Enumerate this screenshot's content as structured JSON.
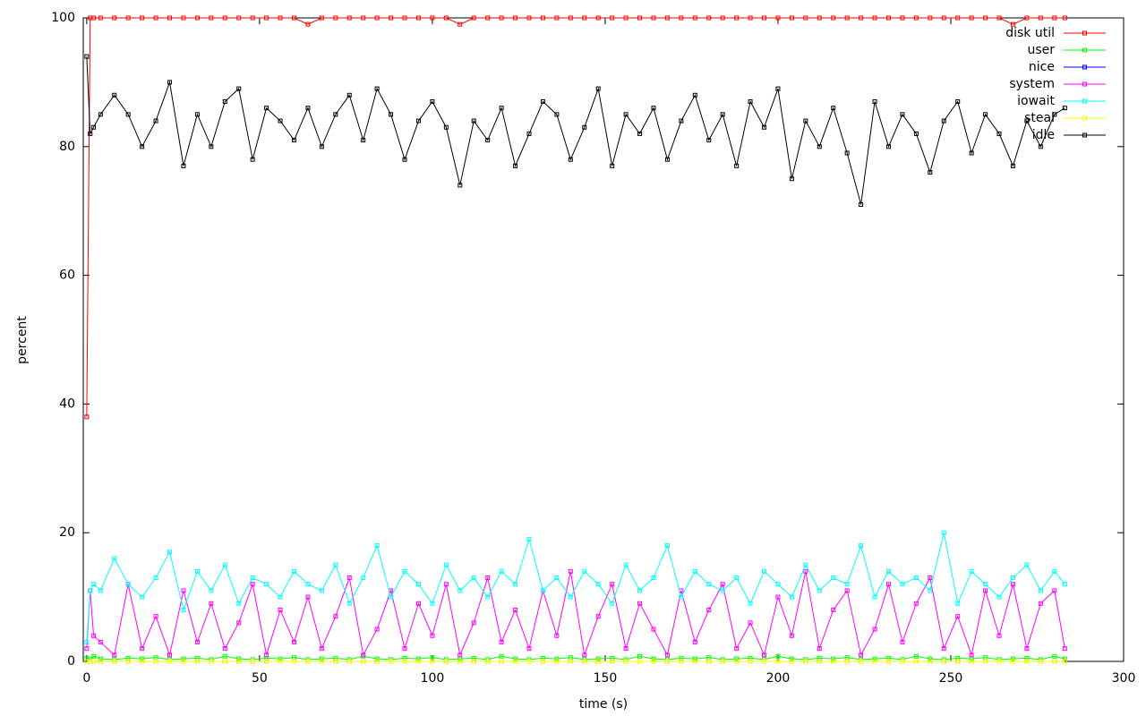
{
  "chart_data": {
    "type": "line",
    "xlabel": "time (s)",
    "ylabel": "percent",
    "xlim": [
      -1,
      300
    ],
    "ylim": [
      0,
      100
    ],
    "xticks": [
      0,
      50,
      100,
      150,
      200,
      250,
      300
    ],
    "yticks": [
      0,
      20,
      40,
      60,
      80,
      100
    ],
    "legend": "top-right",
    "x": [
      0,
      1,
      2,
      4,
      8,
      12,
      16,
      20,
      24,
      28,
      32,
      36,
      40,
      44,
      48,
      52,
      56,
      60,
      64,
      68,
      72,
      76,
      80,
      84,
      88,
      92,
      96,
      100,
      104,
      108,
      112,
      116,
      120,
      124,
      128,
      132,
      136,
      140,
      144,
      148,
      152,
      156,
      160,
      164,
      168,
      172,
      176,
      180,
      184,
      188,
      192,
      196,
      200,
      204,
      208,
      212,
      216,
      220,
      224,
      228,
      232,
      236,
      240,
      244,
      248,
      252,
      256,
      260,
      264,
      268,
      272,
      276,
      280,
      283
    ],
    "series": [
      {
        "name": "disk util",
        "color": "#ff0000",
        "values": [
          38,
          100,
          100,
          100,
          100,
          100,
          100,
          100,
          100,
          100,
          100,
          100,
          100,
          100,
          100,
          100,
          100,
          100,
          99,
          100,
          100,
          100,
          100,
          100,
          100,
          100,
          100,
          100,
          100,
          99,
          100,
          100,
          100,
          100,
          100,
          100,
          100,
          100,
          100,
          100,
          100,
          100,
          100,
          100,
          100,
          100,
          100,
          100,
          100,
          100,
          100,
          100,
          100,
          100,
          100,
          100,
          100,
          100,
          100,
          100,
          100,
          100,
          100,
          100,
          100,
          100,
          100,
          100,
          100,
          99,
          100,
          100,
          100,
          100
        ]
      },
      {
        "name": "user",
        "color": "#00ff00",
        "values": [
          0.5,
          0.3,
          0.8,
          0.4,
          0.3,
          0.5,
          0.4,
          0.6,
          0.3,
          0.4,
          0.5,
          0.3,
          0.8,
          0.4,
          0.3,
          0.5,
          0.4,
          0.6,
          0.3,
          0.4,
          0.5,
          0.3,
          0.8,
          0.4,
          0.3,
          0.5,
          0.4,
          0.6,
          0.3,
          0.4,
          0.5,
          0.3,
          0.8,
          0.4,
          0.3,
          0.5,
          0.4,
          0.6,
          0.3,
          0.4,
          0.5,
          0.3,
          0.8,
          0.4,
          0.3,
          0.5,
          0.4,
          0.6,
          0.3,
          0.4,
          0.5,
          0.3,
          0.8,
          0.4,
          0.3,
          0.5,
          0.4,
          0.6,
          0.3,
          0.4,
          0.5,
          0.3,
          0.8,
          0.4,
          0.3,
          0.5,
          0.4,
          0.6,
          0.3,
          0.4,
          0.5,
          0.3,
          0.8,
          0.4
        ]
      },
      {
        "name": "nice",
        "color": "#0000ff",
        "values": [
          0,
          0,
          0,
          0,
          0,
          0,
          0,
          0,
          0,
          0,
          0,
          0,
          0,
          0,
          0,
          0,
          0,
          0,
          0,
          0,
          0,
          0,
          0,
          0,
          0,
          0,
          0,
          0,
          0,
          0,
          0,
          0,
          0,
          0,
          0,
          0,
          0,
          0,
          0,
          0,
          0,
          0,
          0,
          0,
          0,
          0,
          0,
          0,
          0,
          0,
          0,
          0,
          0,
          0,
          0,
          0,
          0,
          0,
          0,
          0,
          0,
          0,
          0,
          0,
          0,
          0,
          0,
          0,
          0,
          0,
          0,
          0,
          0,
          0
        ]
      },
      {
        "name": "system",
        "color": "#ff00ff",
        "values": [
          2,
          11,
          4,
          3,
          1,
          12,
          2,
          7,
          1,
          11,
          3,
          9,
          2,
          6,
          12,
          1,
          8,
          3,
          10,
          2,
          7,
          13,
          1,
          5,
          11,
          2,
          9,
          4,
          12,
          1,
          6,
          13,
          3,
          8,
          2,
          11,
          4,
          14,
          1,
          7,
          12,
          2,
          9,
          5,
          1,
          11,
          3,
          8,
          12,
          2,
          6,
          1,
          10,
          4,
          14,
          2,
          8,
          11,
          1,
          5,
          12,
          3,
          9,
          13,
          2,
          7,
          1,
          11,
          4,
          12,
          2,
          9,
          11,
          2
        ]
      },
      {
        "name": "iowait",
        "color": "#00ffff",
        "values": [
          3,
          11,
          12,
          11,
          16,
          12,
          10,
          13,
          17,
          8,
          14,
          11,
          15,
          9,
          13,
          12,
          10,
          14,
          12,
          11,
          15,
          9,
          13,
          18,
          10,
          14,
          12,
          9,
          15,
          11,
          13,
          10,
          14,
          12,
          19,
          11,
          13,
          10,
          14,
          12,
          9,
          15,
          11,
          13,
          18,
          10,
          14,
          12,
          11,
          13,
          9,
          14,
          12,
          10,
          15,
          11,
          13,
          12,
          18,
          10,
          14,
          12,
          13,
          11,
          20,
          9,
          14,
          12,
          10,
          13,
          15,
          11,
          14,
          12
        ]
      },
      {
        "name": "steal",
        "color": "#ffff00",
        "values": [
          0,
          0,
          0,
          0,
          0,
          0,
          0,
          0,
          0,
          0,
          0,
          0,
          0,
          0,
          0,
          0,
          0,
          0,
          0,
          0,
          0,
          0,
          0,
          0,
          0,
          0,
          0,
          0,
          0,
          0,
          0,
          0,
          0,
          0,
          0,
          0,
          0,
          0,
          0,
          0,
          0,
          0,
          0,
          0,
          0,
          0,
          0,
          0,
          0,
          0,
          0,
          0,
          0,
          0,
          0,
          0,
          0,
          0,
          0,
          0,
          0,
          0,
          0,
          0,
          0,
          0,
          0,
          0,
          0,
          0,
          0,
          0,
          0,
          0
        ]
      },
      {
        "name": "idle",
        "color": "#000000",
        "values": [
          94,
          82,
          83,
          85,
          88,
          85,
          80,
          84,
          90,
          77,
          85,
          80,
          87,
          89,
          78,
          86,
          84,
          81,
          86,
          80,
          85,
          88,
          81,
          89,
          85,
          78,
          84,
          87,
          83,
          74,
          84,
          81,
          86,
          77,
          82,
          87,
          85,
          78,
          83,
          89,
          77,
          85,
          82,
          86,
          78,
          84,
          88,
          81,
          85,
          77,
          87,
          83,
          89,
          75,
          84,
          80,
          86,
          79,
          71,
          87,
          80,
          85,
          82,
          76,
          84,
          87,
          79,
          85,
          82,
          77,
          84,
          80,
          85,
          86
        ]
      }
    ]
  }
}
